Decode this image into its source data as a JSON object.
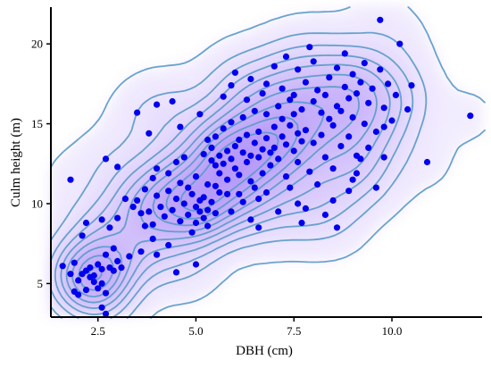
{
  "chart_data": {
    "type": "scatter",
    "xlabel": "DBH (cm)",
    "ylabel": "Culm height (m)",
    "xlim": [
      1.3,
      12.3
    ],
    "ylim": [
      2.9,
      22.3
    ],
    "xticks": [
      2.5,
      5.0,
      7.5,
      10.0
    ],
    "xtick_labels": [
      "2.5",
      "5.0",
      "7.5",
      "10.0"
    ],
    "yticks": [
      5,
      10,
      15,
      20
    ],
    "ytick_labels": [
      "5",
      "10",
      "15",
      "20"
    ],
    "grid": false,
    "legend": "none",
    "point_color": "#0000ee",
    "contour_color": "#5a9ac8",
    "fill_color": "#8a5cf5",
    "density_overlay": "kernel density contours",
    "points": [
      [
        1.6,
        6.1
      ],
      [
        1.8,
        5.6
      ],
      [
        1.9,
        6.3
      ],
      [
        1.9,
        4.5
      ],
      [
        2.0,
        4.3
      ],
      [
        2.0,
        5.2
      ],
      [
        2.1,
        5.6
      ],
      [
        2.2,
        5.8
      ],
      [
        2.2,
        4.6
      ],
      [
        2.3,
        5.4
      ],
      [
        2.3,
        6.0
      ],
      [
        2.4,
        5.1
      ],
      [
        2.4,
        5.5
      ],
      [
        2.5,
        6.2
      ],
      [
        2.5,
        4.7
      ],
      [
        2.6,
        5.0
      ],
      [
        2.6,
        5.9
      ],
      [
        2.7,
        6.8
      ],
      [
        2.7,
        4.4
      ],
      [
        2.8,
        6.0
      ],
      [
        2.1,
        8.0
      ],
      [
        2.2,
        8.8
      ],
      [
        2.6,
        9.0
      ],
      [
        2.6,
        3.5
      ],
      [
        2.7,
        3.1
      ],
      [
        2.9,
        5.8
      ],
      [
        3.0,
        6.4
      ],
      [
        3.1,
        6.0
      ],
      [
        3.0,
        12.3
      ],
      [
        3.2,
        10.3
      ],
      [
        1.8,
        11.5
      ],
      [
        2.7,
        12.8
      ],
      [
        2.8,
        8.5
      ],
      [
        3.0,
        9.1
      ],
      [
        3.4,
        9.8
      ],
      [
        3.5,
        10.2
      ],
      [
        3.6,
        9.4
      ],
      [
        3.7,
        8.6
      ],
      [
        3.7,
        10.9
      ],
      [
        3.8,
        9.5
      ],
      [
        3.9,
        11.6
      ],
      [
        3.9,
        8.7
      ],
      [
        4.0,
        10.5
      ],
      [
        4.0,
        12.2
      ],
      [
        4.1,
        9.8
      ],
      [
        4.2,
        9.2
      ],
      [
        4.3,
        10.8
      ],
      [
        4.3,
        11.9
      ],
      [
        4.4,
        9.6
      ],
      [
        4.5,
        10.3
      ],
      [
        4.5,
        12.6
      ],
      [
        4.6,
        8.9
      ],
      [
        4.6,
        11.3
      ],
      [
        4.7,
        10.0
      ],
      [
        4.7,
        12.9
      ],
      [
        4.8,
        9.3
      ],
      [
        4.8,
        11.0
      ],
      [
        4.9,
        10.6
      ],
      [
        5.0,
        9.8
      ],
      [
        5.0,
        11.7
      ],
      [
        5.0,
        8.8
      ],
      [
        5.1,
        10.2
      ],
      [
        5.1,
        9.5
      ],
      [
        5.2,
        9.1
      ],
      [
        5.2,
        10.4
      ],
      [
        5.3,
        9.6
      ],
      [
        5.3,
        11.2
      ],
      [
        5.4,
        10.1
      ],
      [
        5.5,
        9.4
      ],
      [
        5.5,
        12.4
      ],
      [
        3.5,
        15.7
      ],
      [
        3.8,
        14.4
      ],
      [
        3.6,
        7.0
      ],
      [
        4.0,
        16.2
      ],
      [
        4.4,
        16.4
      ],
      [
        4.6,
        14.8
      ],
      [
        4.5,
        5.7
      ],
      [
        4.0,
        6.8
      ],
      [
        5.0,
        6.2
      ],
      [
        5.1,
        15.6
      ],
      [
        5.2,
        13.1
      ],
      [
        5.3,
        14.0
      ],
      [
        5.4,
        12.7
      ],
      [
        5.4,
        13.5
      ],
      [
        5.5,
        14.2
      ],
      [
        5.6,
        11.9
      ],
      [
        5.6,
        13.0
      ],
      [
        5.7,
        12.5
      ],
      [
        5.7,
        14.7
      ],
      [
        5.8,
        13.3
      ],
      [
        5.8,
        11.5
      ],
      [
        5.9,
        12.8
      ],
      [
        5.9,
        15.1
      ],
      [
        6.0,
        13.6
      ],
      [
        6.0,
        12.2
      ],
      [
        6.1,
        14.0
      ],
      [
        6.1,
        11.8
      ],
      [
        6.2,
        13.2
      ],
      [
        6.2,
        15.4
      ],
      [
        6.3,
        12.6
      ],
      [
        6.3,
        14.3
      ],
      [
        6.4,
        13.0
      ],
      [
        6.4,
        11.4
      ],
      [
        6.5,
        13.8
      ],
      [
        6.5,
        15.8
      ],
      [
        6.6,
        12.9
      ],
      [
        6.6,
        14.5
      ],
      [
        6.7,
        13.4
      ],
      [
        6.7,
        11.9
      ],
      [
        6.8,
        14.1
      ],
      [
        6.8,
        15.6
      ],
      [
        6.9,
        13.2
      ],
      [
        6.9,
        12.4
      ],
      [
        7.0,
        14.8
      ],
      [
        7.0,
        13.5
      ],
      [
        7.1,
        16.1
      ],
      [
        7.1,
        12.8
      ],
      [
        7.2,
        14.2
      ],
      [
        7.2,
        15.3
      ],
      [
        7.3,
        13.7
      ],
      [
        7.3,
        11.7
      ],
      [
        7.4,
        14.9
      ],
      [
        7.4,
        16.5
      ],
      [
        7.5,
        13.3
      ],
      [
        7.5,
        15.6
      ],
      [
        7.6,
        14.4
      ],
      [
        7.6,
        12.6
      ],
      [
        7.7,
        15.9
      ],
      [
        7.7,
        13.9
      ],
      [
        7.8,
        14.6
      ],
      [
        5.7,
        16.7
      ],
      [
        5.9,
        17.4
      ],
      [
        6.0,
        18.2
      ],
      [
        6.3,
        16.5
      ],
      [
        6.4,
        17.8
      ],
      [
        6.7,
        16.9
      ],
      [
        6.8,
        17.5
      ],
      [
        7.0,
        18.6
      ],
      [
        7.2,
        17.2
      ],
      [
        7.3,
        19.2
      ],
      [
        7.5,
        16.8
      ],
      [
        7.6,
        18.4
      ],
      [
        7.8,
        17.6
      ],
      [
        7.9,
        19.8
      ],
      [
        8.0,
        16.4
      ],
      [
        8.0,
        18.9
      ],
      [
        8.1,
        17.1
      ],
      [
        8.2,
        15.7
      ],
      [
        8.2,
        14.3
      ],
      [
        8.3,
        16.8
      ],
      [
        8.3,
        12.9
      ],
      [
        8.4,
        15.3
      ],
      [
        8.4,
        17.9
      ],
      [
        8.5,
        14.9
      ],
      [
        8.5,
        12.2
      ],
      [
        8.6,
        16.1
      ],
      [
        8.6,
        18.5
      ],
      [
        8.7,
        13.6
      ],
      [
        8.7,
        15.8
      ],
      [
        8.8,
        17.3
      ],
      [
        8.8,
        19.4
      ],
      [
        8.9,
        16.6
      ],
      [
        8.9,
        14.2
      ],
      [
        9.0,
        18.1
      ],
      [
        9.0,
        15.4
      ],
      [
        9.1,
        16.9
      ],
      [
        9.1,
        13.0
      ],
      [
        9.2,
        17.6
      ],
      [
        9.3,
        15.0
      ],
      [
        9.3,
        18.8
      ],
      [
        9.4,
        16.3
      ],
      [
        9.5,
        17.2
      ],
      [
        9.6,
        14.5
      ],
      [
        9.7,
        18.4
      ],
      [
        9.8,
        16.0
      ],
      [
        9.9,
        17.5
      ],
      [
        10.0,
        15.2
      ],
      [
        10.1,
        16.8
      ],
      [
        10.2,
        20.0
      ],
      [
        9.7,
        21.5
      ],
      [
        10.4,
        15.9
      ],
      [
        10.5,
        17.4
      ],
      [
        10.9,
        12.6
      ],
      [
        12.0,
        15.5
      ],
      [
        8.0,
        13.8
      ],
      [
        8.1,
        11.2
      ],
      [
        7.9,
        12.0
      ],
      [
        8.5,
        10.2
      ],
      [
        8.6,
        8.5
      ],
      [
        8.3,
        9.3
      ],
      [
        9.0,
        11.5
      ],
      [
        9.1,
        11.9
      ],
      [
        8.9,
        10.8
      ],
      [
        9.2,
        12.8
      ],
      [
        9.4,
        13.5
      ],
      [
        9.6,
        11.0
      ],
      [
        9.8,
        12.9
      ],
      [
        9.8,
        14.8
      ],
      [
        6.1,
        10.6
      ],
      [
        6.2,
        10.1
      ],
      [
        6.5,
        11.0
      ],
      [
        6.6,
        10.3
      ],
      [
        6.8,
        10.7
      ],
      [
        7.1,
        9.5
      ],
      [
        7.4,
        11.0
      ],
      [
        7.6,
        10.0
      ],
      [
        7.7,
        8.8
      ],
      [
        7.8,
        9.7
      ],
      [
        5.8,
        10.6
      ],
      [
        5.9,
        9.5
      ],
      [
        6.4,
        9.0
      ],
      [
        6.6,
        8.5
      ],
      [
        5.5,
        11.1
      ],
      [
        5.6,
        10.7
      ],
      [
        5.3,
        8.6
      ],
      [
        4.9,
        8.2
      ],
      [
        4.3,
        7.4
      ],
      [
        3.9,
        7.8
      ],
      [
        3.3,
        6.7
      ],
      [
        2.9,
        7.2
      ]
    ]
  }
}
